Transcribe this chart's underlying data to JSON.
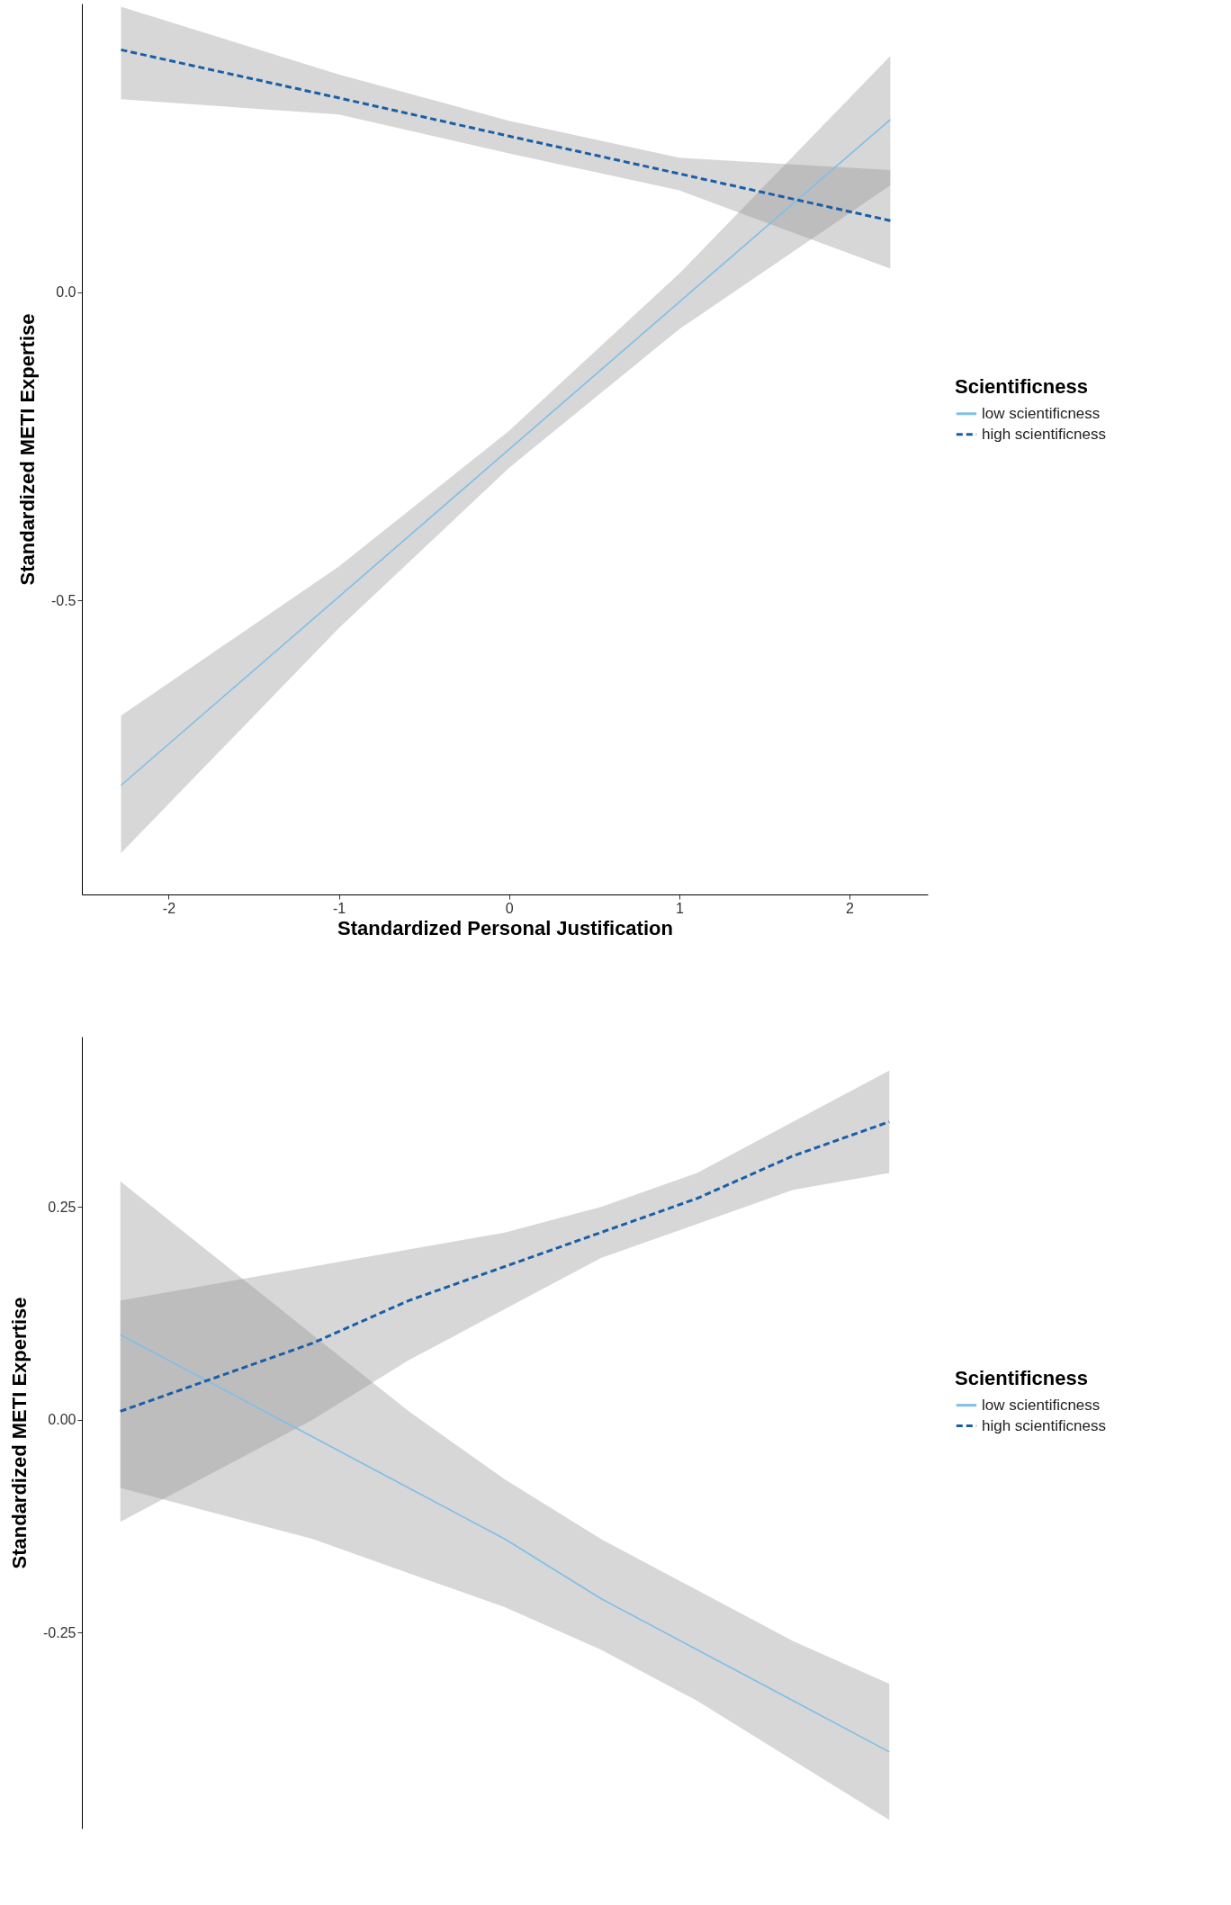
{
  "chart_data": [
    {
      "type": "line",
      "xlabel": "Standardized Personal Justification",
      "ylabel": "Standardized METI Expertise",
      "legend_title": "Scientificness",
      "legend": "right",
      "grid": false,
      "xlim": [
        -2.51,
        2.46
      ],
      "xticks": [
        -2,
        -1,
        0,
        1,
        2
      ],
      "ylim": [
        -0.977,
        0.468
      ],
      "yticks": [
        -0.5,
        {
          "value": 0,
          "label": "0.0"
        }
      ],
      "x": [
        -2.28,
        -1,
        0,
        1,
        2.24
      ],
      "series": [
        {
          "name": "low scientificness",
          "color": "#7fbfe8",
          "line_style": "solid",
          "values": [
            -0.8,
            -0.494,
            -0.255,
            -0.016,
            0.28
          ],
          "lower": [
            -0.91,
            -0.545,
            -0.285,
            -0.06,
            0.173
          ],
          "upper": [
            -0.687,
            -0.445,
            -0.225,
            0.03,
            0.383
          ]
        },
        {
          "name": "high scientificness",
          "color": "#1a5ea8",
          "line_style": "dashed",
          "values": [
            0.393,
            0.315,
            0.253,
            0.192,
            0.116
          ],
          "lower": [
            0.313,
            0.288,
            0.225,
            0.165,
            0.038
          ],
          "upper": [
            0.463,
            0.353,
            0.278,
            0.218,
            0.198
          ]
        }
      ]
    },
    {
      "type": "line",
      "ylabel": "Standardized METI Expertise",
      "legend_title": "Scientificness",
      "legend": "right",
      "grid": false,
      "tick_labels": "y",
      "categories": [
        null,
        null,
        null,
        null,
        null,
        null,
        null,
        null,
        null
      ],
      "ylim": [
        -0.48,
        0.45
      ],
      "yticks": [
        -0.25,
        {
          "value": 0,
          "label": "0.00"
        },
        0.25
      ],
      "series": [
        {
          "name": "low scientificness",
          "color": "#7fbfe8",
          "line_style": "solid",
          "values": [
            0.1,
            0.04,
            -0.02,
            -0.08,
            -0.14,
            -0.21,
            -0.27,
            -0.33,
            -0.39
          ],
          "lower": [
            -0.08,
            -0.11,
            -0.14,
            -0.18,
            -0.22,
            -0.27,
            -0.33,
            -0.4,
            -0.47
          ],
          "upper": [
            0.28,
            0.19,
            0.1,
            0.01,
            -0.07,
            -0.14,
            -0.2,
            -0.26,
            -0.31
          ]
        },
        {
          "name": "high scientificness",
          "color": "#1a5ea8",
          "line_style": "dashed",
          "values": [
            0.01,
            0.05,
            0.09,
            0.14,
            0.18,
            0.22,
            0.26,
            0.31,
            0.35
          ],
          "lower": [
            -0.12,
            -0.06,
            0,
            0.07,
            0.13,
            0.19,
            0.23,
            0.27,
            0.29
          ],
          "upper": [
            0.14,
            0.16,
            0.18,
            0.2,
            0.22,
            0.25,
            0.29,
            0.35,
            0.41
          ]
        }
      ]
    }
  ]
}
